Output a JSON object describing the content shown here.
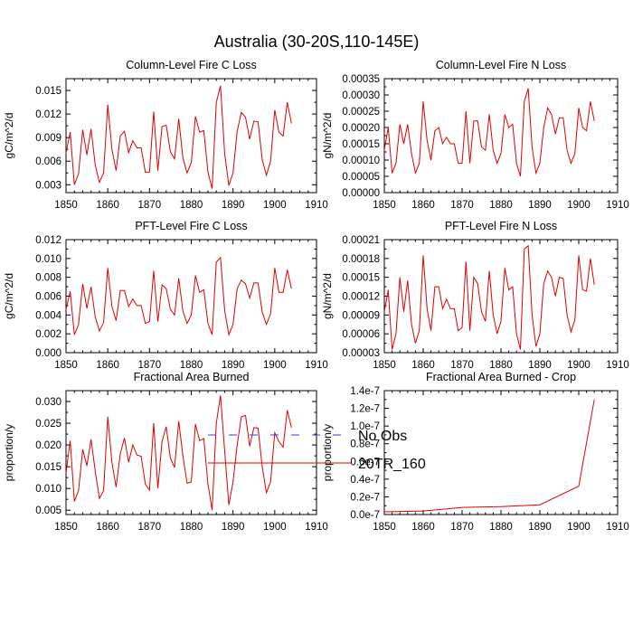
{
  "title": "Australia (30-20S,110-145E)",
  "legend": [
    {
      "name": "No Obs",
      "color": "#3b3bd6",
      "style": "dashed"
    },
    {
      "name": "20TR_160",
      "color": "#e00000",
      "style": "solid"
    }
  ],
  "chart_data": [
    {
      "type": "line",
      "title": "Column-Level Fire C Loss",
      "ylabel": "gC/m^2/d",
      "xlim": [
        1850,
        1910
      ],
      "ylim": [
        0.002,
        0.0165
      ],
      "xticks": [
        "1850",
        "1860",
        "1870",
        "1880",
        "1890",
        "1900",
        "1910"
      ],
      "yticks": [
        "0.003",
        "0.006",
        "0.009",
        "0.012",
        "0.015"
      ],
      "x_start": 1850,
      "series": [
        {
          "name": "20TR_160",
          "color": "#e00000",
          "values": [
            0.007,
            0.0097,
            0.003,
            0.0044,
            0.01,
            0.0068,
            0.0101,
            0.0055,
            0.0033,
            0.0045,
            0.0132,
            0.0075,
            0.0048,
            0.0092,
            0.0098,
            0.0071,
            0.0086,
            0.0077,
            0.0077,
            0.0046,
            0.0046,
            0.0123,
            0.0048,
            0.0104,
            0.0106,
            0.0072,
            0.0063,
            0.0114,
            0.0064,
            0.0045,
            0.0058,
            0.0117,
            0.0097,
            0.0099,
            0.0046,
            0.0025,
            0.0135,
            0.0156,
            0.007,
            0.0029,
            0.0045,
            0.0098,
            0.0122,
            0.0116,
            0.0088,
            0.0111,
            0.011,
            0.0062,
            0.0042,
            0.006,
            0.0125,
            0.0097,
            0.0092,
            0.0135,
            0.0108
          ]
        }
      ]
    },
    {
      "type": "line",
      "title": "Column-Level Fire N Loss",
      "ylabel": "gN/m^2/d",
      "xlim": [
        1850,
        1910
      ],
      "ylim": [
        0.0,
        0.00035
      ],
      "xticks": [
        "1850",
        "1860",
        "1870",
        "1880",
        "1890",
        "1900",
        "1910"
      ],
      "yticks": [
        "0.00000",
        "0.00005",
        "0.00010",
        "0.00015",
        "0.00020",
        "0.00025",
        "0.00030",
        "0.00035"
      ],
      "x_start": 1850,
      "series": [
        {
          "name": "20TR_160",
          "color": "#e00000",
          "values": [
            0.00013,
            0.0002,
            6e-05,
            9e-05,
            0.00021,
            0.00015,
            0.00021,
            0.00012,
            6e-05,
            9e-05,
            0.00028,
            0.00016,
            0.0001,
            0.00019,
            0.0002,
            0.00015,
            0.00017,
            0.00015,
            0.00015,
            9e-05,
            9e-05,
            0.00025,
            9e-05,
            0.00022,
            0.00022,
            0.00014,
            0.00013,
            0.00024,
            0.00013,
            9e-05,
            0.00012,
            0.00024,
            0.0002,
            0.00021,
            9e-05,
            5e-05,
            0.00028,
            0.00032,
            0.00014,
            6e-05,
            9e-05,
            0.0002,
            0.00026,
            0.00024,
            0.00018,
            0.00023,
            0.00023,
            0.00013,
            9e-05,
            0.00012,
            0.00026,
            0.0002,
            0.00019,
            0.00028,
            0.00022
          ]
        }
      ]
    },
    {
      "type": "line",
      "title": "PFT-Level Fire C Loss",
      "ylabel": "gC/m^2/d",
      "xlim": [
        1850,
        1910
      ],
      "ylim": [
        0.0,
        0.012
      ],
      "xticks": [
        "1850",
        "1860",
        "1870",
        "1880",
        "1890",
        "1900",
        "1910"
      ],
      "yticks": [
        "0.000",
        "0.002",
        "0.004",
        "0.006",
        "0.008",
        "0.010",
        "0.012"
      ],
      "x_start": 1850,
      "series": [
        {
          "name": "20TR_160",
          "color": "#e00000",
          "values": [
            0.0046,
            0.0065,
            0.0019,
            0.003,
            0.0073,
            0.0047,
            0.007,
            0.0038,
            0.0023,
            0.0032,
            0.009,
            0.0049,
            0.0034,
            0.0066,
            0.0066,
            0.0049,
            0.0057,
            0.005,
            0.005,
            0.0031,
            0.0033,
            0.0087,
            0.0033,
            0.0072,
            0.0068,
            0.0046,
            0.004,
            0.0079,
            0.0044,
            0.0031,
            0.004,
            0.0082,
            0.0064,
            0.0067,
            0.0031,
            0.0019,
            0.0096,
            0.0101,
            0.0045,
            0.0019,
            0.003,
            0.0068,
            0.0077,
            0.0073,
            0.0058,
            0.0074,
            0.0074,
            0.0043,
            0.003,
            0.0041,
            0.009,
            0.0064,
            0.0064,
            0.0088,
            0.0068
          ]
        }
      ]
    },
    {
      "type": "line",
      "title": "PFT-Level Fire N Loss",
      "ylabel": "gN/m^2/d",
      "xlim": [
        1850,
        1910
      ],
      "ylim": [
        3e-05,
        0.00021
      ],
      "xticks": [
        "1850",
        "1860",
        "1870",
        "1880",
        "1890",
        "1900",
        "1910"
      ],
      "yticks": [
        "0.00003",
        "0.00006",
        "0.00009",
        "0.00012",
        "0.00015",
        "0.00018",
        "0.00021"
      ],
      "x_start": 1850,
      "series": [
        {
          "name": "20TR_160",
          "color": "#e00000",
          "values": [
            9.5e-05,
            0.00013,
            3.5e-05,
            6e-05,
            0.00015,
            9.5e-05,
            0.000145,
            7.5e-05,
            4.5e-05,
            6.5e-05,
            0.000185,
            0.0001,
            6.5e-05,
            0.000135,
            0.000135,
            0.0001,
            0.000115,
            0.0001,
            0.0001,
            6.5e-05,
            7e-05,
            0.000175,
            6.5e-05,
            0.00015,
            0.00014,
            9.5e-05,
            8e-05,
            0.00016,
            9e-05,
            6e-05,
            8e-05,
            0.000165,
            0.00013,
            0.000135,
            6e-05,
            3.5e-05,
            0.000195,
            0.0002,
            9e-05,
            4e-05,
            6e-05,
            0.00014,
            0.00016,
            0.00015,
            0.00012,
            0.00015,
            0.000148,
            9e-05,
            6.3e-05,
            8.2e-05,
            0.000185,
            0.00013,
            0.000128,
            0.00018,
            0.000138
          ]
        }
      ]
    },
    {
      "type": "line",
      "title": "Fractional Area Burned",
      "ylabel": "proportion/y",
      "xlim": [
        1850,
        1910
      ],
      "ylim": [
        0.004,
        0.0325
      ],
      "xticks": [
        "1850",
        "1860",
        "1870",
        "1880",
        "1890",
        "1900",
        "1910"
      ],
      "yticks": [
        "0.005",
        "0.010",
        "0.015",
        "0.020",
        "0.025",
        "0.030"
      ],
      "x_start": 1850,
      "series": [
        {
          "name": "20TR_160",
          "color": "#e00000",
          "values": [
            0.0135,
            0.021,
            0.007,
            0.0095,
            0.019,
            0.0152,
            0.0213,
            0.014,
            0.0077,
            0.0095,
            0.0265,
            0.016,
            0.0103,
            0.018,
            0.0216,
            0.016,
            0.02,
            0.0177,
            0.0174,
            0.011,
            0.0096,
            0.025,
            0.01,
            0.0208,
            0.0242,
            0.017,
            0.0148,
            0.0255,
            0.0175,
            0.0112,
            0.0115,
            0.0248,
            0.021,
            0.0215,
            0.011,
            0.005,
            0.025,
            0.0314,
            0.0187,
            0.0062,
            0.0115,
            0.02,
            0.0265,
            0.0268,
            0.0197,
            0.024,
            0.0239,
            0.015,
            0.009,
            0.0115,
            0.0228,
            0.0208,
            0.0195,
            0.028,
            0.024
          ]
        }
      ]
    },
    {
      "type": "line",
      "title": "Fractional Area Burned - Crop",
      "ylabel": "proportion/y",
      "xlim": [
        1850,
        1910
      ],
      "ylim": [
        0.0,
        1.4e-07
      ],
      "xticks": [
        "1850",
        "1860",
        "1870",
        "1880",
        "1890",
        "1900",
        "1910"
      ],
      "yticks": [
        "0.0e-7",
        "0.2e-7",
        "0.4e-7",
        "0.6e-7",
        "0.8e-7",
        "1.0e-7",
        "1.2e-7",
        "1.4e-7"
      ],
      "series": [
        {
          "name": "20TR_160",
          "color": "#e00000",
          "x": [
            1850,
            1860,
            1870,
            1880,
            1890,
            1900,
            1904
          ],
          "values": [
            3e-09,
            4e-09,
            8e-09,
            9e-09,
            1.1e-08,
            3.2e-08,
            1.3e-07
          ]
        }
      ]
    }
  ]
}
